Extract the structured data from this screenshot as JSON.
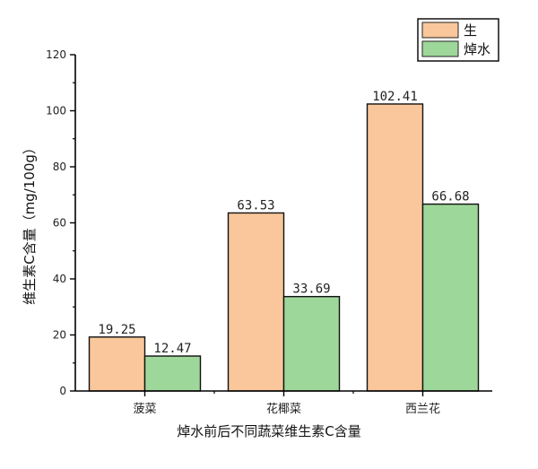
{
  "chart_data": {
    "type": "bar",
    "title": "",
    "xlabel": "焯水前后不同蔬菜维生素C含量",
    "ylabel": "维生素C含量（mg/100g）",
    "categories": [
      "菠菜",
      "花椰菜",
      "西兰花"
    ],
    "series": [
      {
        "name": "生",
        "values": [
          19.25,
          63.53,
          102.41
        ],
        "color": "#f9c79b"
      },
      {
        "name": "焯水",
        "values": [
          12.47,
          33.69,
          66.68
        ],
        "color": "#9ed79a"
      }
    ],
    "data_labels": [
      [
        "19.25",
        "63.53",
        "102.41"
      ],
      [
        "12.47",
        "33.69",
        "66.68"
      ]
    ],
    "ylim": [
      0,
      120
    ],
    "yticks": [
      "0",
      "20",
      "40",
      "60",
      "80",
      "100",
      "120"
    ],
    "grid": false,
    "legend_position": "top-right"
  }
}
